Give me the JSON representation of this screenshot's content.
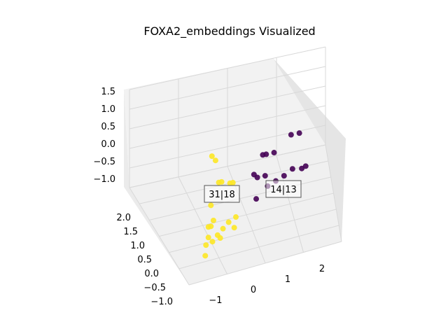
{
  "chart_data": {
    "type": "scatter",
    "title": "FOXA2_embeddings Visualized",
    "projection": "3d",
    "xlim": [
      -1.5,
      2.5
    ],
    "ylim": [
      -1.0,
      2.2
    ],
    "zlim": [
      -1.2,
      1.6
    ],
    "x_ticks": [
      "−1",
      "0",
      "1",
      "2"
    ],
    "y_ticks": [
      "−1.0",
      "−0.5",
      "0.0",
      "0.5",
      "1.0",
      "1.5",
      "2.0"
    ],
    "z_ticks": [
      "−1.0",
      "−0.5",
      "0.0",
      "0.5",
      "1.0",
      "1.5"
    ],
    "grid": true,
    "colors": {
      "class_yellow": "#fde725",
      "class_purple": "#440154",
      "pane": "#f2f2f2",
      "grid": "#d8d8d8"
    },
    "annotations": [
      {
        "text": "31|18"
      },
      {
        "text": "14|13"
      }
    ],
    "series": [
      {
        "label": "yellow",
        "points": [
          [
            -0.5,
            1.2,
            1.3
          ],
          [
            -0.45,
            1.3,
            1.25
          ],
          [
            -0.3,
            1.1,
            0.4
          ],
          [
            -0.2,
            1.0,
            0.3
          ],
          [
            0.0,
            1.0,
            0.2
          ],
          [
            0.1,
            0.9,
            0.1
          ],
          [
            -0.6,
            1.4,
            0.1
          ],
          [
            -0.7,
            1.5,
            -0.4
          ],
          [
            -0.6,
            1.4,
            -0.5
          ],
          [
            -0.5,
            1.3,
            -0.45
          ],
          [
            -0.8,
            1.6,
            -0.8
          ],
          [
            -0.7,
            1.5,
            -0.7
          ],
          [
            -0.9,
            1.8,
            -0.9
          ],
          [
            -0.6,
            1.5,
            -0.85
          ],
          [
            -0.4,
            1.3,
            -0.9
          ],
          [
            -0.2,
            1.1,
            -0.95
          ],
          [
            0.0,
            0.9,
            -1.0
          ],
          [
            0.2,
            0.8,
            -1.0
          ],
          [
            -0.3,
            1.2,
            -1.1
          ],
          [
            0.1,
            1.0,
            -1.1
          ]
        ]
      },
      {
        "label": "purple",
        "points": [
          [
            0.9,
            0.5,
            0.3
          ],
          [
            1.0,
            0.4,
            0.2
          ],
          [
            1.2,
            0.3,
            0.1
          ],
          [
            1.6,
            0.2,
            0.4
          ],
          [
            1.8,
            0.1,
            0.3
          ],
          [
            0.7,
            0.5,
            -0.2
          ],
          [
            0.8,
            0.4,
            -0.4
          ],
          [
            1.0,
            0.3,
            -0.5
          ],
          [
            1.1,
            0.1,
            -1.0
          ],
          [
            1.3,
            0.0,
            -1.0
          ],
          [
            1.5,
            -0.1,
            -1.0
          ],
          [
            1.7,
            -0.2,
            -0.95
          ],
          [
            1.9,
            -0.2,
            -1.0
          ],
          [
            2.0,
            -0.3,
            -1.05
          ],
          [
            0.8,
            0.3,
            -1.1
          ]
        ]
      }
    ]
  }
}
